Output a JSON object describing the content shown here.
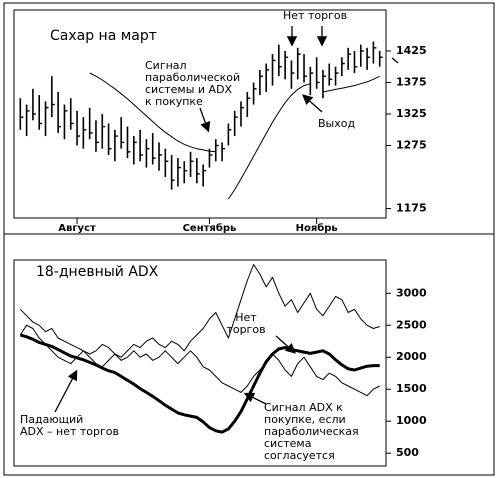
{
  "chart_data": [
    {
      "type": "ohlc",
      "title": "Сахар на март",
      "ylim": [
        1160,
        1490
      ],
      "yticks": [
        1175,
        1275,
        1325,
        1375,
        1425
      ],
      "xlim": [
        -1,
        58
      ],
      "xticks": [
        {
          "value": 9,
          "label": "Август"
        },
        {
          "value": 30,
          "label": "Сентябрь"
        },
        {
          "value": 47,
          "label": "Ноябрь"
        }
      ],
      "color": "#000000",
      "high": [
        1350,
        1340,
        1365,
        1355,
        1345,
        1385,
        1360,
        1340,
        1350,
        1330,
        1320,
        1335,
        1315,
        1325,
        1310,
        1300,
        1320,
        1305,
        1290,
        1300,
        1285,
        1295,
        1280,
        1270,
        1260,
        1255,
        1250,
        1265,
        1255,
        1245,
        1270,
        1285,
        1280,
        1310,
        1330,
        1345,
        1360,
        1375,
        1395,
        1405,
        1420,
        1435,
        1425,
        1410,
        1430,
        1420,
        1400,
        1415,
        1395,
        1405,
        1400,
        1415,
        1430,
        1425,
        1435,
        1430,
        1440,
        1425
      ],
      "low": [
        1300,
        1290,
        1315,
        1300,
        1290,
        1320,
        1295,
        1285,
        1300,
        1275,
        1270,
        1285,
        1265,
        1270,
        1260,
        1250,
        1270,
        1255,
        1245,
        1250,
        1240,
        1245,
        1235,
        1225,
        1205,
        1210,
        1215,
        1225,
        1215,
        1210,
        1240,
        1250,
        1250,
        1275,
        1290,
        1305,
        1320,
        1340,
        1355,
        1360,
        1370,
        1385,
        1380,
        1365,
        1380,
        1375,
        1355,
        1365,
        1350,
        1370,
        1370,
        1385,
        1395,
        1390,
        1400,
        1395,
        1405,
        1400
      ],
      "close": [
        1320,
        1330,
        1325,
        1310,
        1335,
        1340,
        1305,
        1330,
        1310,
        1290,
        1300,
        1295,
        1280,
        1305,
        1270,
        1290,
        1280,
        1265,
        1280,
        1260,
        1270,
        1255,
        1260,
        1250,
        1220,
        1240,
        1235,
        1250,
        1230,
        1235,
        1260,
        1275,
        1270,
        1300,
        1320,
        1335,
        1350,
        1365,
        1385,
        1395,
        1410,
        1400,
        1415,
        1390,
        1420,
        1385,
        1390,
        1375,
        1385,
        1380,
        1390,
        1405,
        1420,
        1400,
        1425,
        1415,
        1430,
        1415
      ],
      "series": [
        {
          "color": "#000000",
          "values": [
            null,
            null,
            null,
            null,
            null,
            null,
            null,
            null,
            null,
            null,
            null,
            1390,
            1385,
            1379,
            1372,
            1365,
            1357,
            1349,
            1340,
            1331,
            1322,
            1313,
            1304,
            1296,
            1289,
            1282,
            1277,
            1273,
            1270,
            1268,
            1266,
            1265,
            null,
            1190,
            1205,
            1222,
            1240,
            1258,
            1276,
            1294,
            1312,
            1328,
            1343,
            1355,
            1364,
            1370,
            1373,
            null,
            1360,
            1362,
            1364,
            1366,
            1368,
            1370,
            1373,
            1376,
            1380,
            1385
          ]
        }
      ],
      "annotations": [
        {
          "lines": [
            "Сигнал",
            "параболической",
            "системы и ADX",
            "к покупке"
          ]
        },
        {
          "lines": [
            "Нет торгов"
          ]
        },
        {
          "lines": [
            "Выход"
          ]
        }
      ]
    },
    {
      "type": "line",
      "title": "18-дневный ADX",
      "ylim": [
        300,
        3520
      ],
      "yticks": [
        500,
        1000,
        1500,
        2000,
        2500,
        3000
      ],
      "xlim": [
        -1,
        58
      ],
      "series": [
        {
          "color": "#000000",
          "width": 1,
          "values": [
            2750,
            2650,
            2550,
            2500,
            2400,
            2450,
            2300,
            2250,
            2200,
            2150,
            2100,
            2050,
            2100,
            2200,
            2150,
            2050,
            2000,
            2100,
            2200,
            2150,
            2250,
            2300,
            2200,
            2150,
            2250,
            2200,
            2100,
            2250,
            2350,
            2450,
            2600,
            2700,
            2500,
            2300,
            2600,
            2900,
            3200,
            3450,
            3300,
            3100,
            3250,
            3000,
            2800,
            2900,
            2700,
            2850,
            3000,
            2750,
            2650,
            2800,
            2950,
            2900,
            2700,
            2750,
            2600,
            2500,
            2450,
            2480
          ]
        },
        {
          "color": "#000000",
          "width": 1,
          "values": [
            2350,
            2500,
            2450,
            2300,
            2200,
            2100,
            2000,
            1950,
            1900,
            2000,
            2100,
            2000,
            1900,
            1850,
            1950,
            2050,
            1950,
            2000,
            2100,
            2000,
            2050,
            1950,
            2000,
            2100,
            2000,
            1900,
            2000,
            2100,
            2000,
            1850,
            1800,
            1700,
            1600,
            1550,
            1500,
            1450,
            1550,
            1700,
            1800,
            1900,
            2050,
            1950,
            1800,
            1700,
            1900,
            2000,
            1850,
            1700,
            1650,
            1750,
            1700,
            1600,
            1550,
            1500,
            1450,
            1400,
            1500,
            1550
          ]
        },
        {
          "color": "#000000",
          "width": 3,
          "values": [
            2350,
            2320,
            2280,
            2230,
            2200,
            2170,
            2120,
            2070,
            2020,
            1990,
            1960,
            1920,
            1880,
            1830,
            1790,
            1760,
            1700,
            1640,
            1580,
            1510,
            1450,
            1390,
            1320,
            1250,
            1190,
            1130,
            1100,
            1080,
            1060,
            990,
            900,
            850,
            830,
            880,
            1000,
            1150,
            1350,
            1550,
            1750,
            1930,
            2050,
            2130,
            2150,
            2120,
            2100,
            2080,
            2060,
            2080,
            2100,
            2050,
            1960,
            1880,
            1820,
            1800,
            1830,
            1860,
            1870,
            1870
          ]
        }
      ],
      "annotations": [
        {
          "lines": [
            "Нет",
            "торгов"
          ]
        },
        {
          "lines": [
            "Падающий",
            "ADX – нет торгов"
          ]
        },
        {
          "lines": [
            "Сигнал ADX к",
            "покупке, если",
            "параболическая",
            "система",
            "согласуется"
          ]
        }
      ]
    }
  ]
}
